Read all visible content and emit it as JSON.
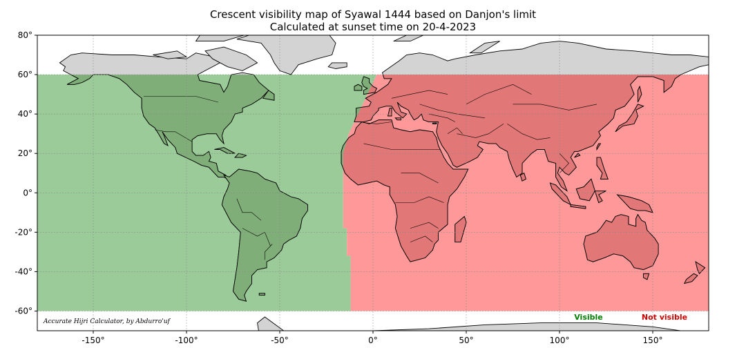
{
  "chart_data": {
    "type": "map",
    "title": "Crescent visibility map of Syawal 1444 based on Danjon's limit",
    "subtitle": "Calculated at sunset time on 20-4-2023",
    "xlim": [
      -180,
      180
    ],
    "ylim": [
      -70,
      80
    ],
    "x_ticks": [
      -150,
      -100,
      -50,
      0,
      50,
      100,
      150
    ],
    "x_tick_labels": [
      "-150°",
      "-100°",
      "-50°",
      "0°",
      "50°",
      "100°",
      "150°"
    ],
    "y_ticks": [
      80,
      60,
      40,
      20,
      0,
      -20,
      -40,
      -60
    ],
    "y_tick_labels": [
      "80°",
      "60°",
      "40°",
      "20°",
      "0°",
      "-20°",
      "-40°",
      "-60°"
    ],
    "grid": true,
    "computed_lat_range": [
      -60,
      60
    ],
    "visibility_boundary": [
      {
        "lat": 60,
        "lon": 2
      },
      {
        "lat": 50,
        "lon": -3
      },
      {
        "lat": 40,
        "lon": -8
      },
      {
        "lat": 30,
        "lon": -13
      },
      {
        "lat": 20,
        "lon": -16
      },
      {
        "lat": 10,
        "lon": -16
      },
      {
        "lat": 0,
        "lon": -16
      },
      {
        "lat": -10,
        "lon": -16
      },
      {
        "lat": -18,
        "lon": -16
      },
      {
        "lat": -18,
        "lon": -14
      },
      {
        "lat": -32,
        "lon": -14
      },
      {
        "lat": -32,
        "lon": -12
      },
      {
        "lat": -60,
        "lon": -12
      }
    ],
    "legend": [
      {
        "label": "Visible",
        "color": "#008000"
      },
      {
        "label": "Not visible",
        "color": "#d40000"
      }
    ],
    "colors": {
      "visible_fill": "#9acb98",
      "not_visible_fill": "#ff9999",
      "land_outside": "#d3d3d3",
      "land_visible": "#80ae78",
      "land_not_visible": "#e17777",
      "land_edge": "#000000",
      "grid": "#888888"
    },
    "credit": "Accurate Hijri Calculator, by Abdurro'uf",
    "legend_placement": "bottom-right"
  }
}
